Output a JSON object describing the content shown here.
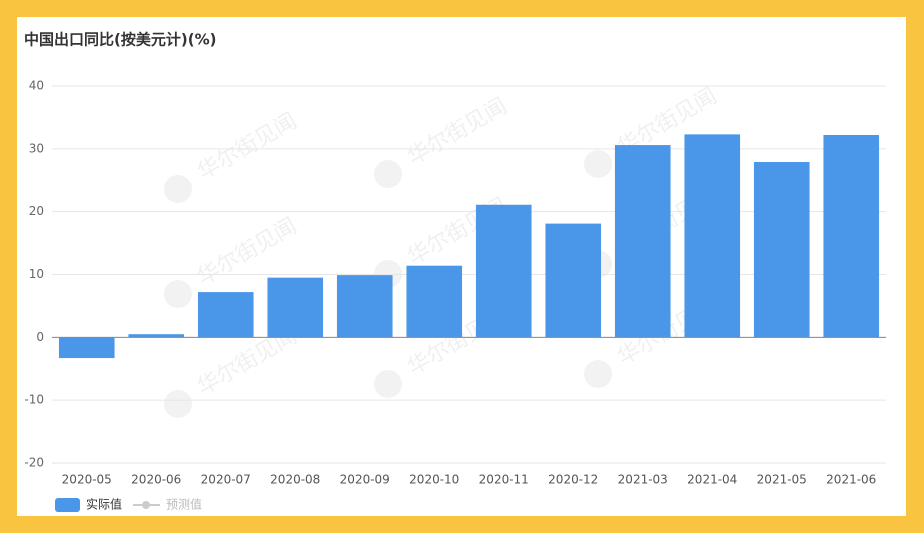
{
  "chart_data": {
    "type": "bar",
    "title": "中国出口同比(按美元计)(%)",
    "watermark": "华尔街见闻",
    "categories": [
      "2020-05",
      "2020-06",
      "2020-07",
      "2020-08",
      "2020-09",
      "2020-10",
      "2020-11",
      "2020-12",
      "2021-03",
      "2021-04",
      "2021-05",
      "2021-06"
    ],
    "series": [
      {
        "name": "实际值",
        "color": "#4a97e9",
        "values": [
          -3.3,
          0.5,
          7.2,
          9.5,
          9.9,
          11.4,
          21.1,
          18.1,
          30.6,
          32.3,
          27.9,
          32.2
        ]
      },
      {
        "name": "预测值",
        "color": "#cccccc",
        "values": [
          null,
          null,
          null,
          null,
          null,
          null,
          null,
          null,
          null,
          null,
          null,
          null
        ]
      }
    ],
    "ylim": [
      -20,
      40
    ],
    "yticks": [
      -20,
      -10,
      0,
      10,
      20,
      30,
      40
    ],
    "grid": true,
    "legend": "bottom-left"
  }
}
